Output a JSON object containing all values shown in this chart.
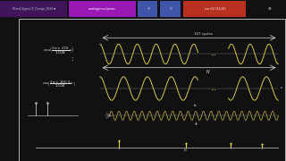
{
  "bg_color": "#1a1a2e",
  "content_bg": "#0d0d0d",
  "outer_bg": "#111111",
  "toolbar_bg": "#2d1040",
  "wave_color": "#e8d840",
  "wave_color2": "#c8b830",
  "axis_color": "#aaaaaa",
  "text_color": "#dddddd",
  "white": "#ffffff",
  "tab1_bg": "#4a1a6a",
  "tab2_bg": "#9a1ab0",
  "tab3_bg": "#4060b0",
  "tab4_bg": "#c03020",
  "border_color": "#d0d0d0",
  "sidebar_color": "#2a2a2a"
}
